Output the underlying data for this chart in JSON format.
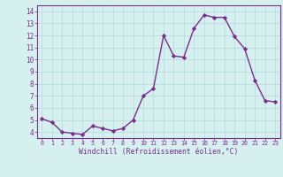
{
  "x": [
    0,
    1,
    2,
    3,
    4,
    5,
    6,
    7,
    8,
    9,
    10,
    11,
    12,
    13,
    14,
    15,
    16,
    17,
    18,
    19,
    20,
    21,
    22,
    23
  ],
  "y": [
    5.1,
    4.8,
    4.0,
    3.9,
    3.8,
    4.5,
    4.3,
    4.1,
    4.3,
    5.0,
    7.0,
    7.6,
    12.0,
    10.3,
    10.2,
    12.6,
    13.7,
    13.5,
    13.5,
    11.9,
    10.9,
    8.3,
    6.6,
    6.5
  ],
  "line_color": "#7b2d8b",
  "marker": "D",
  "marker_size": 2.2,
  "line_width": 1.0,
  "bg_color": "#d6f0f0",
  "grid_color": "#b8dede",
  "xlabel": "Windchill (Refroidissement éolien,°C)",
  "xlabel_color": "#7b2d8b",
  "tick_color": "#7b2d8b",
  "xlim": [
    -0.5,
    23.5
  ],
  "ylim": [
    3.5,
    14.5
  ],
  "yticks": [
    4,
    5,
    6,
    7,
    8,
    9,
    10,
    11,
    12,
    13,
    14
  ],
  "xticks": [
    0,
    1,
    2,
    3,
    4,
    5,
    6,
    7,
    8,
    9,
    10,
    11,
    12,
    13,
    14,
    15,
    16,
    17,
    18,
    19,
    20,
    21,
    22,
    23
  ],
  "xtick_fontsize": 4.8,
  "ytick_fontsize": 5.5,
  "xlabel_fontsize": 5.8
}
